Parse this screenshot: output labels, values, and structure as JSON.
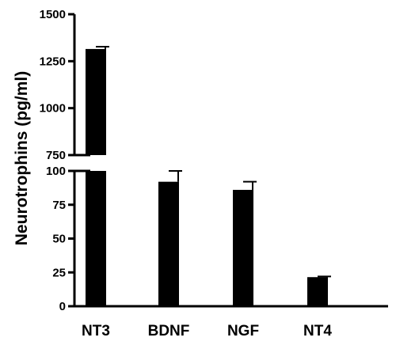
{
  "chart_data": {
    "type": "bar",
    "title": "",
    "xlabel": "",
    "ylabel": "Neurotrophins (pg/ml)",
    "categories": [
      "NT3",
      "BDNF",
      "NGF",
      "NT4"
    ],
    "series": [
      {
        "values": [
          1315,
          92,
          86,
          21.5
        ],
        "errors": [
          12,
          9,
          6,
          0.5
        ]
      }
    ],
    "y_axis_break": {
      "lower_segment": {
        "ylim": [
          0,
          100
        ],
        "ticks": [
          "0",
          "25",
          "50",
          "75",
          "100"
        ],
        "tick_values": [
          0,
          25,
          50,
          75,
          100
        ]
      },
      "upper_segment": {
        "ylim": [
          750,
          1500
        ],
        "ticks": [
          "750",
          "1000",
          "1250",
          "1500"
        ],
        "tick_values": [
          750,
          1000,
          1250,
          1500
        ]
      }
    },
    "bar_color": "#000000",
    "grid": false,
    "legend": "none"
  }
}
